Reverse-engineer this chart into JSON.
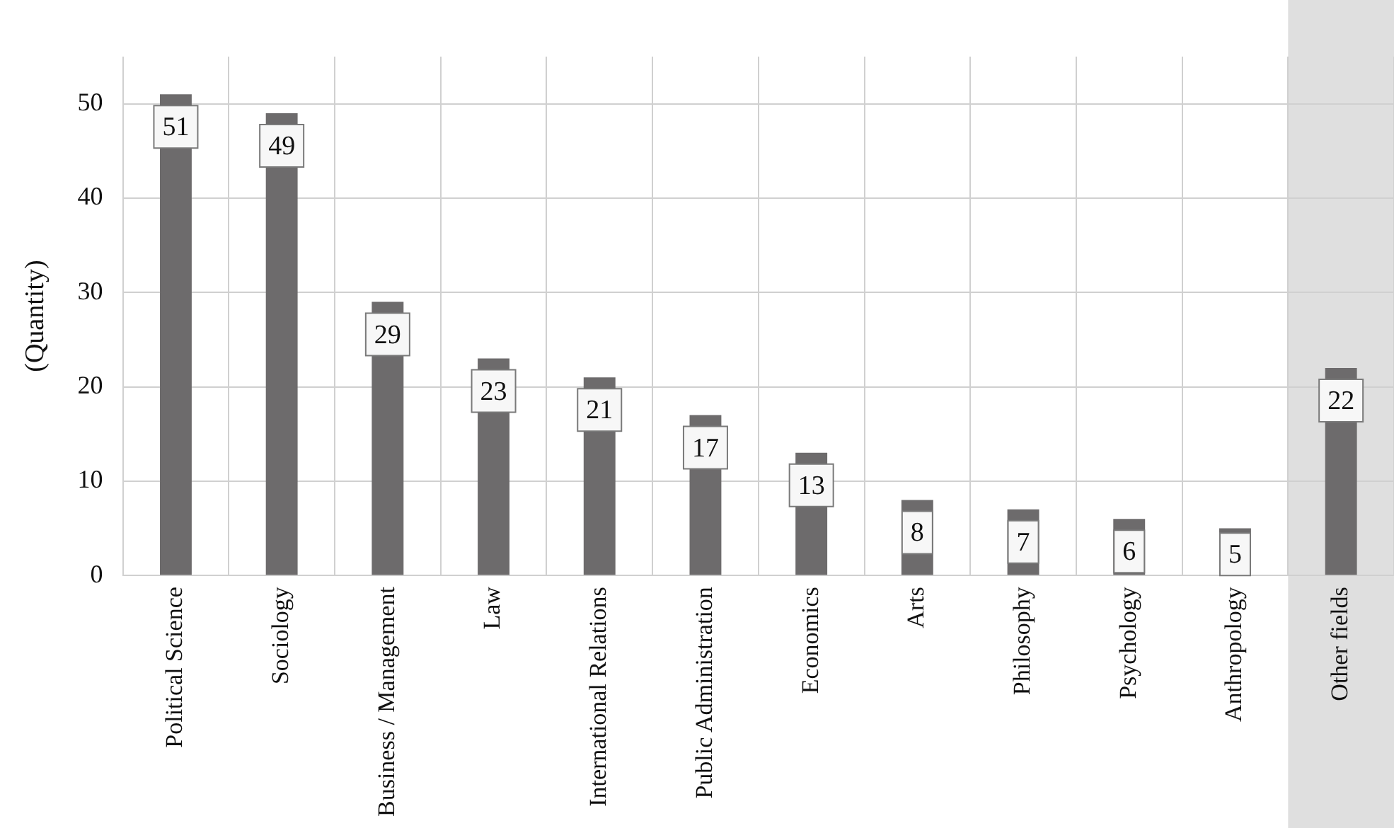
{
  "chart_data": {
    "type": "bar",
    "ylabel": "(Quantity)",
    "categories": [
      "Political Science",
      "Sociology",
      "Business / Management",
      "Law",
      "International Relations",
      "Public Administration",
      "Economics",
      "Arts",
      "Philosophy",
      "Psychology",
      "Anthropology",
      "Other fields"
    ],
    "values": [
      51,
      49,
      29,
      23,
      21,
      17,
      13,
      8,
      7,
      6,
      5,
      22
    ],
    "color": "#6d6b6c",
    "ylim": [
      0,
      55
    ],
    "yticks": [
      0,
      10,
      20,
      30,
      40,
      50
    ],
    "grid": true,
    "data_labels": true,
    "bands": [
      {
        "axis": "x",
        "from": "Other fields",
        "to": "Other fields",
        "color": "#d9d9d9"
      }
    ]
  }
}
